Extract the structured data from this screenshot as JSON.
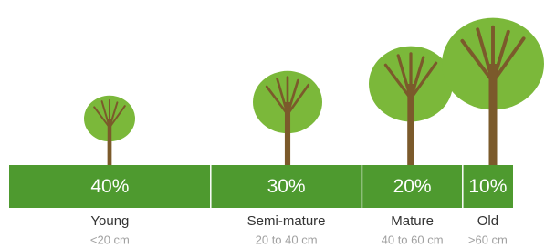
{
  "chart_data": {
    "type": "proportion-bar",
    "categories": [
      "Young",
      "Semi-mature",
      "Mature",
      "Old"
    ],
    "size_ranges": [
      "<20 cm",
      "20 to 40 cm",
      "40 to 60 cm",
      ">60 cm"
    ],
    "values": [
      40,
      30,
      20,
      10
    ],
    "value_labels": [
      "40%",
      "30%",
      "20%",
      "10%"
    ],
    "color": "#4e9a2f"
  }
}
